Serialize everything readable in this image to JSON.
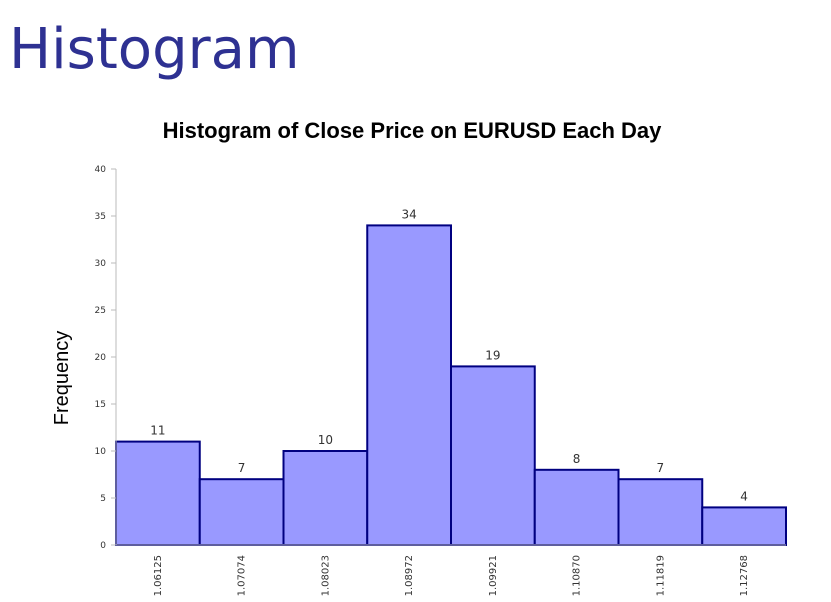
{
  "page": {
    "heading": "Histogram"
  },
  "chart_data": {
    "type": "bar",
    "title": "Histogram of Close Price on EURUSD Each Day",
    "ylabel": "Frequency",
    "xlabel": "",
    "categories": [
      "1.06125",
      "1.07074",
      "1.08023",
      "1.08972",
      "1.09921",
      "1.10870",
      "1.11819",
      "1.12768"
    ],
    "values": [
      11,
      7,
      10,
      34,
      19,
      8,
      7,
      4
    ],
    "ylim": [
      0,
      40
    ],
    "yticks": [
      0,
      5,
      10,
      15,
      20,
      25,
      30,
      35,
      40
    ],
    "grid": false,
    "legend": "none",
    "colors": {
      "bar_fill": "#9999ff",
      "bar_stroke": "#000080",
      "heading": "#2e3192"
    }
  }
}
